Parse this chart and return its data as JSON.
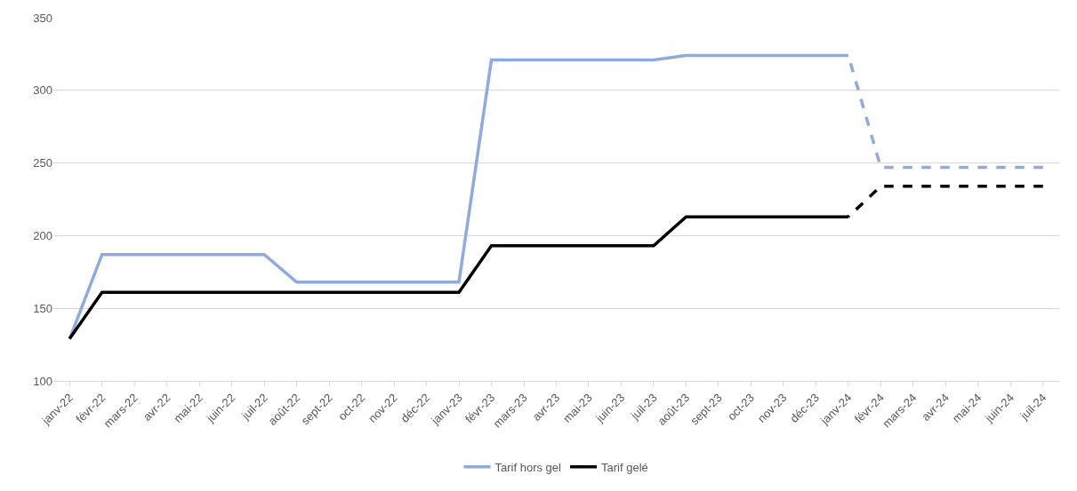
{
  "chart_data": {
    "type": "line",
    "categories": [
      "janv-22",
      "févr-22",
      "mars-22",
      "avr-22",
      "mai-22",
      "juin-22",
      "juil-22",
      "août-22",
      "sept-22",
      "oct-22",
      "nov-22",
      "déc-22",
      "janv-23",
      "févr-23",
      "mars-23",
      "avr-23",
      "mai-23",
      "juin-23",
      "juil-23",
      "août-23",
      "sept-23",
      "oct-23",
      "nov-23",
      "déc-23",
      "janv-24",
      "févr-24",
      "mars-24",
      "avr-24",
      "mai-24",
      "juin-24",
      "juil-24"
    ],
    "series": [
      {
        "name": "Tarif hors gel",
        "color": "#8faadc",
        "line_style": "solid",
        "values": [
          129,
          187,
          187,
          187,
          187,
          187,
          187,
          168,
          168,
          168,
          168,
          168,
          168,
          321,
          321,
          321,
          321,
          321,
          321,
          324,
          324,
          324,
          324,
          324,
          324,
          null,
          null,
          null,
          null,
          null,
          null
        ]
      },
      {
        "name": "Tarif gelé",
        "color": "#000000",
        "line_style": "solid",
        "values": [
          129,
          161,
          161,
          161,
          161,
          161,
          161,
          161,
          161,
          161,
          161,
          161,
          161,
          193,
          193,
          193,
          193,
          193,
          193,
          213,
          213,
          213,
          213,
          213,
          213,
          null,
          null,
          null,
          null,
          null,
          null
        ]
      },
      {
        "color": "#8faadc",
        "line_style": "dashed",
        "values": [
          null,
          null,
          null,
          null,
          null,
          null,
          null,
          null,
          null,
          null,
          null,
          null,
          null,
          null,
          null,
          null,
          null,
          null,
          null,
          null,
          null,
          null,
          null,
          null,
          324,
          247,
          247,
          247,
          247,
          247,
          247
        ]
      },
      {
        "color": "#000000",
        "line_style": "dashed",
        "values": [
          null,
          null,
          null,
          null,
          null,
          null,
          null,
          null,
          null,
          null,
          null,
          null,
          null,
          null,
          null,
          null,
          null,
          null,
          null,
          null,
          null,
          null,
          null,
          null,
          213,
          234,
          234,
          234,
          234,
          234,
          234
        ]
      }
    ],
    "ylim": [
      100,
      350
    ],
    "yticks": [
      100,
      150,
      200,
      250,
      300,
      350
    ],
    "grid": "y",
    "legend": "bottom",
    "marker": "none"
  }
}
